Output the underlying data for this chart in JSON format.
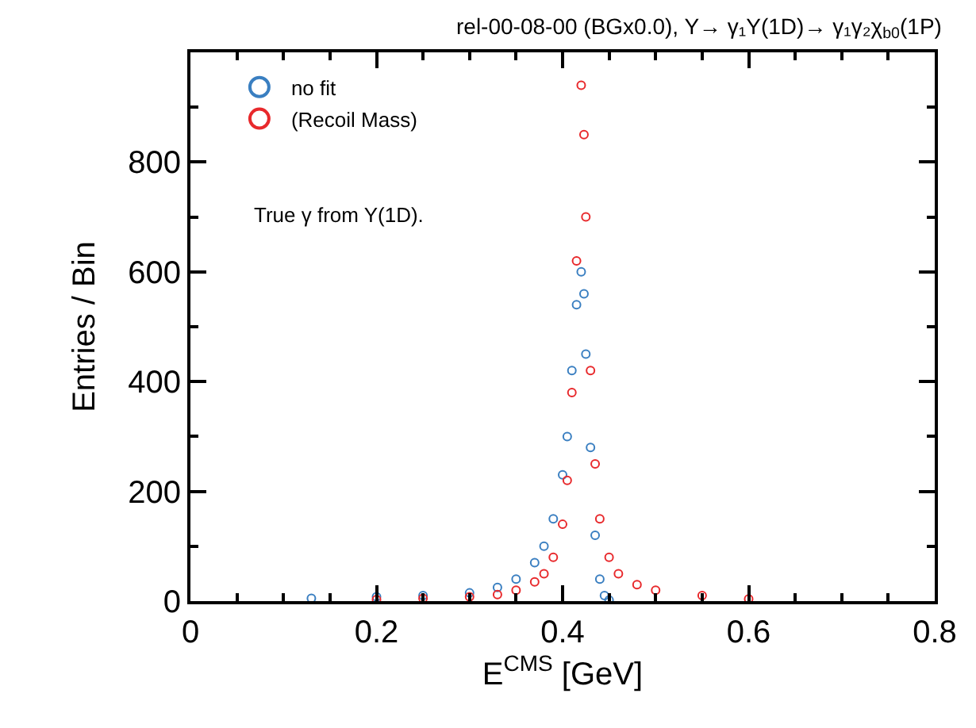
{
  "chart_data": {
    "type": "scatter",
    "title": "rel-00-08-00 (BGx0.0), Y→ γ₁Y(1D)→ γ₁γ₂χ$_{b0}$(1P)",
    "xlabel": "E$^{CMS}$ [GeV]",
    "ylabel": "Entries / Bin",
    "xlim": [
      0,
      0.8
    ],
    "xticks": [
      0,
      0.2,
      0.4,
      0.6,
      0.8
    ],
    "ylim": [
      0,
      1000
    ],
    "yticks": [
      0,
      200,
      400,
      600,
      800
    ],
    "legend": "top left",
    "marker": "circle",
    "annotations": [
      "True γ from Y(1D)."
    ],
    "series": [
      {
        "name": "no fit",
        "color": "#3a7fc1",
        "x": [
          0.13,
          0.2,
          0.25,
          0.3,
          0.33,
          0.35,
          0.37,
          0.38,
          0.39,
          0.4,
          0.405,
          0.41,
          0.415,
          0.42,
          0.423,
          0.425,
          0.43,
          0.435,
          0.44,
          0.445,
          0.45
        ],
        "values": [
          5,
          8,
          10,
          15,
          25,
          40,
          70,
          100,
          150,
          230,
          300,
          420,
          540,
          600,
          560,
          450,
          280,
          120,
          40,
          10,
          2
        ]
      },
      {
        "name": "(Recoil Mass)",
        "color": "#e8292c",
        "x": [
          0.2,
          0.25,
          0.3,
          0.33,
          0.35,
          0.37,
          0.38,
          0.39,
          0.4,
          0.405,
          0.41,
          0.415,
          0.42,
          0.423,
          0.425,
          0.43,
          0.435,
          0.44,
          0.45,
          0.46,
          0.48,
          0.5,
          0.55,
          0.6
        ],
        "values": [
          3,
          5,
          8,
          12,
          20,
          35,
          50,
          80,
          140,
          220,
          380,
          620,
          940,
          850,
          700,
          420,
          250,
          150,
          80,
          50,
          30,
          20,
          10,
          4
        ]
      }
    ]
  }
}
